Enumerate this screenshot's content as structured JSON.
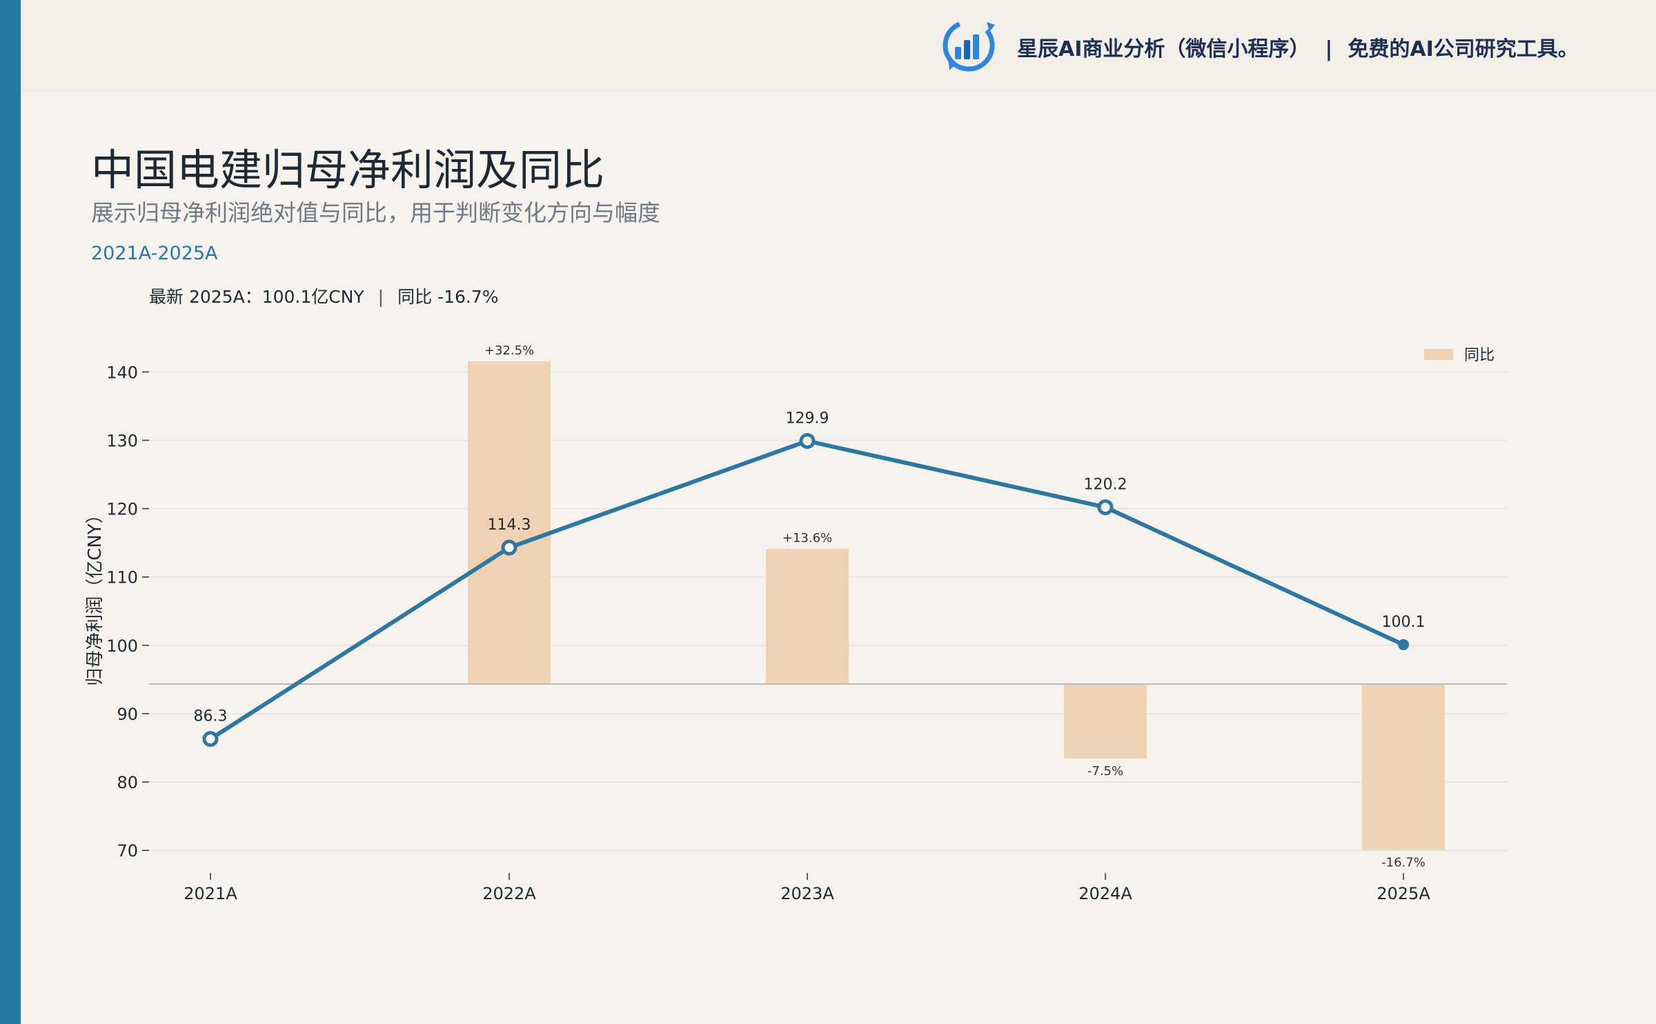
{
  "brand": {
    "name": "星辰AI商业分析（微信小程序）",
    "separator": "|",
    "tagline": "免费的AI公司研究工具。",
    "logo_icon": "bar-chart-refresh-logo",
    "colors": {
      "logo_blue": "#2e86de",
      "logo_dark": "#1c63b7",
      "text": "#1c2f55"
    }
  },
  "header": {
    "title": "中国电建归母净利润及同比",
    "subtitle": "展示归母净利润绝对值与同比，用于判断变化方向与幅度",
    "range": "2021A-2025A",
    "latest_label": "最新 2025A：100.1亿CNY",
    "latest_divider": "|",
    "latest_yoy": "同比 -16.7%"
  },
  "colors": {
    "accent": "#2878a4",
    "line": "#2d77a3",
    "bar": "#efd2b3",
    "grid": "#e4e0da",
    "baseline": "#b8b8b8"
  },
  "chart_data": {
    "type": "line",
    "categories": [
      "2021A",
      "2022A",
      "2023A",
      "2024A",
      "2025A"
    ],
    "ylabel": "归母净利润（亿CNY）",
    "xlabel": "",
    "ylim": [
      67.5,
      147
    ],
    "yticks": [
      70,
      80,
      90,
      100,
      110,
      120,
      130,
      140
    ],
    "grid": true,
    "legend": {
      "position": "top-right",
      "entries": [
        "同比"
      ]
    },
    "series": [
      {
        "type": "line",
        "values": [
          86.3,
          114.3,
          129.9,
          120.2,
          100.1
        ],
        "labels": [
          "86.3",
          "114.3",
          "129.9",
          "120.2",
          "100.1"
        ]
      },
      {
        "type": "bar",
        "name": "同比",
        "axis": "secondary",
        "values": [
          null,
          32.5,
          13.6,
          -7.5,
          -16.7
        ],
        "labels": [
          "",
          "+32.5%",
          "+13.6%",
          "-7.5%",
          "-16.7%"
        ]
      }
    ]
  }
}
